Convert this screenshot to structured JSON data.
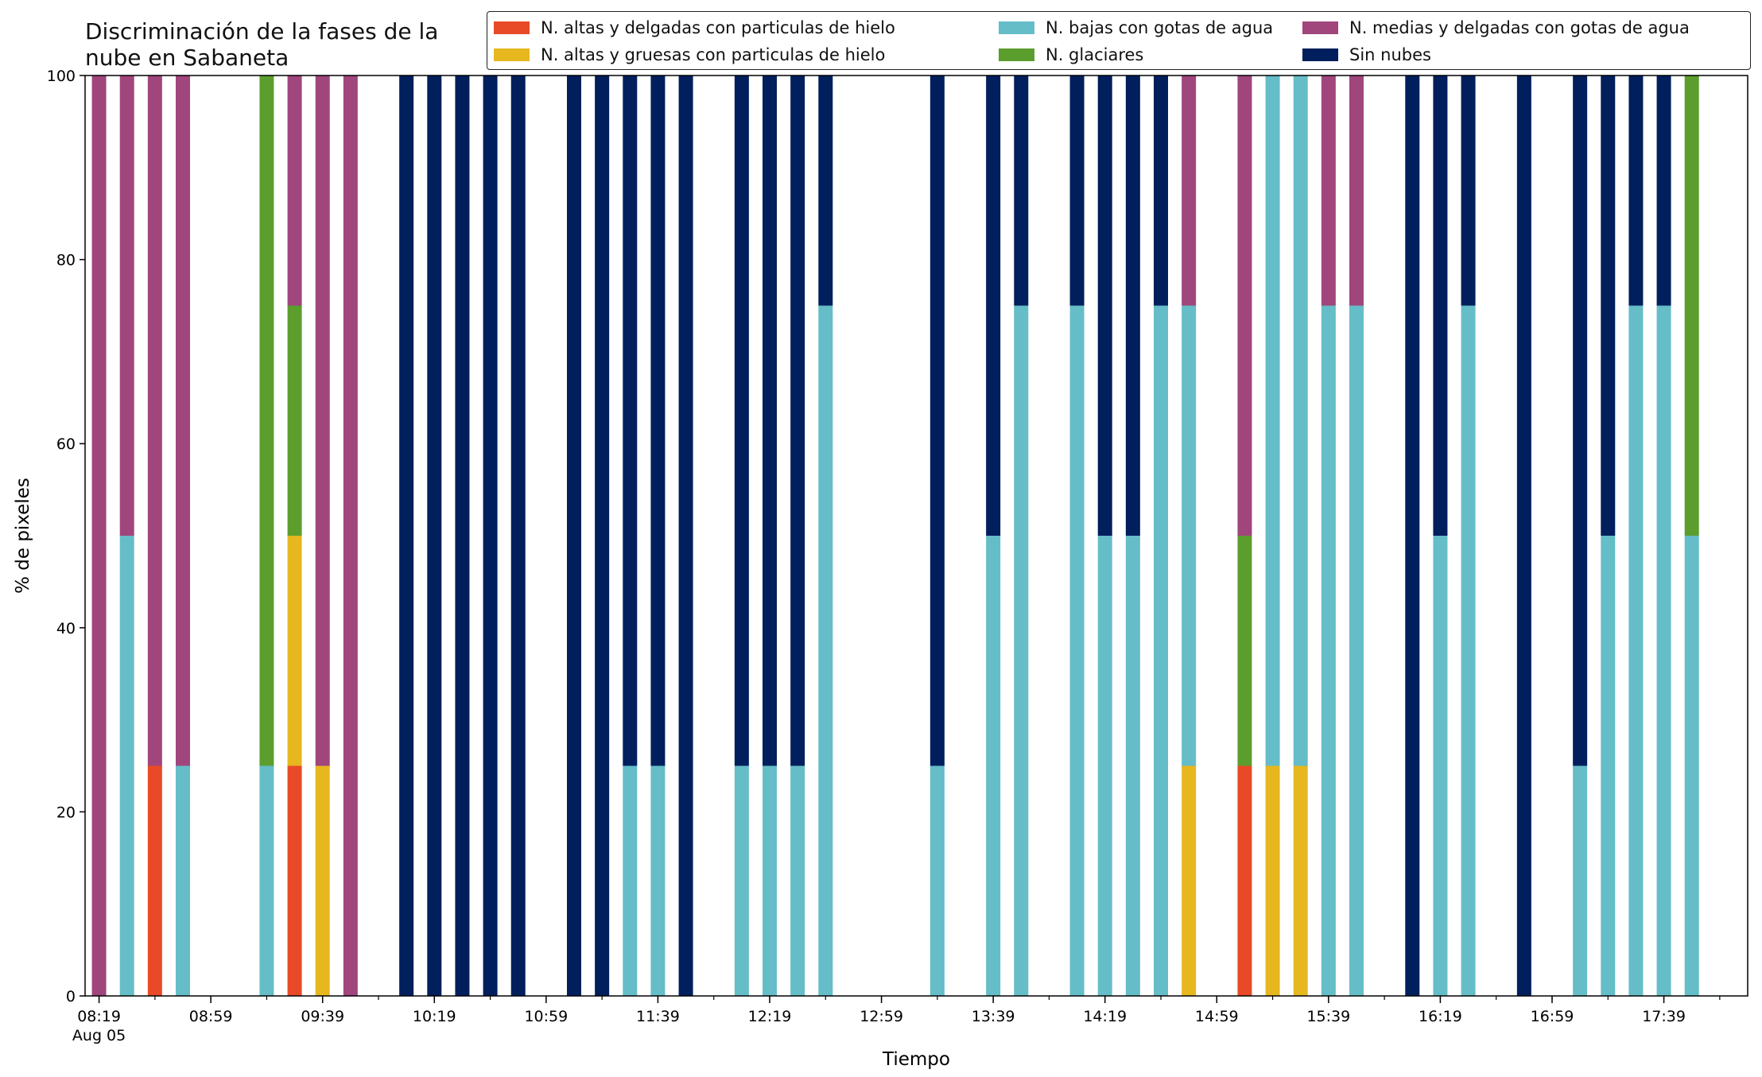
{
  "chart_data": {
    "type": "bar",
    "stacked": true,
    "title": "Discriminación de la fases de la nube en Sabaneta",
    "title_lines": [
      "Discriminación de la fases de la",
      "nube en Sabaneta"
    ],
    "xlabel": "Tiempo",
    "ylabel": "% de pixeles",
    "ylim": [
      0,
      100
    ],
    "yticks": [
      0,
      20,
      40,
      60,
      80,
      100
    ],
    "x_tick_labels": [
      "08:19",
      "08:59",
      "09:39",
      "10:19",
      "10:59",
      "11:39",
      "12:19",
      "12:59",
      "13:39",
      "14:19",
      "14:59",
      "15:39",
      "16:19",
      "16:59",
      "17:39"
    ],
    "x_date_label": "Aug 05",
    "x_range": [
      "08:14",
      "18:09"
    ],
    "bar_interval_minutes": 10,
    "grid": false,
    "legend_position": "top",
    "legend_columns": 3,
    "categories": [
      "08:19",
      "08:29",
      "08:39",
      "08:49",
      "08:59",
      "09:09",
      "09:19",
      "09:29",
      "09:39",
      "09:49",
      "09:59",
      "10:09",
      "10:19",
      "10:29",
      "10:39",
      "10:49",
      "10:59",
      "11:09",
      "11:19",
      "11:29",
      "11:39",
      "11:49",
      "11:59",
      "12:09",
      "12:19",
      "12:29",
      "12:39",
      "12:49",
      "12:59",
      "13:09",
      "13:19",
      "13:29",
      "13:39",
      "13:49",
      "13:59",
      "14:09",
      "14:19",
      "14:29",
      "14:39",
      "14:49",
      "14:59",
      "15:09",
      "15:19",
      "15:29",
      "15:39",
      "15:49",
      "15:59",
      "16:09",
      "16:19",
      "16:29",
      "16:39",
      "16:49",
      "16:59",
      "17:09",
      "17:19",
      "17:29",
      "17:39",
      "17:49",
      "17:59"
    ],
    "series": [
      {
        "name": "N. altas y delgadas con particulas de hielo",
        "color": "#e84a27",
        "values": [
          0,
          0,
          25,
          0,
          0,
          0,
          0,
          25,
          0,
          0,
          0,
          0,
          0,
          0,
          0,
          0,
          0,
          0,
          0,
          0,
          0,
          0,
          0,
          0,
          0,
          0,
          0,
          0,
          0,
          0,
          0,
          0,
          0,
          0,
          0,
          0,
          0,
          0,
          0,
          0,
          0,
          25,
          0,
          0,
          0,
          0,
          0,
          0,
          0,
          0,
          0,
          0,
          0,
          0,
          0,
          0,
          0,
          0,
          0
        ]
      },
      {
        "name": "N. altas y gruesas con particulas de hielo",
        "color": "#e6b71e",
        "values": [
          0,
          0,
          0,
          0,
          0,
          0,
          0,
          25,
          25,
          0,
          0,
          0,
          0,
          0,
          0,
          0,
          0,
          0,
          0,
          0,
          0,
          0,
          0,
          0,
          0,
          0,
          0,
          0,
          0,
          0,
          0,
          0,
          0,
          0,
          0,
          0,
          0,
          0,
          0,
          25,
          0,
          0,
          25,
          25,
          0,
          0,
          0,
          0,
          0,
          0,
          0,
          0,
          0,
          0,
          0,
          0,
          0,
          0,
          0
        ]
      },
      {
        "name": "N. bajas con gotas de agua",
        "color": "#65bdc8",
        "values": [
          0,
          50,
          0,
          25,
          0,
          0,
          25,
          0,
          0,
          0,
          0,
          0,
          0,
          0,
          0,
          0,
          0,
          0,
          0,
          25,
          25,
          0,
          0,
          25,
          25,
          25,
          75,
          0,
          0,
          0,
          25,
          0,
          50,
          75,
          0,
          75,
          50,
          50,
          75,
          50,
          0,
          0,
          75,
          75,
          75,
          75,
          0,
          0,
          50,
          75,
          0,
          0,
          0,
          25,
          50,
          75,
          75,
          50,
          0
        ]
      },
      {
        "name": "N. glaciares",
        "color": "#5c9e2e",
        "values": [
          0,
          0,
          0,
          0,
          0,
          0,
          75,
          25,
          0,
          0,
          0,
          0,
          0,
          0,
          0,
          0,
          0,
          0,
          0,
          0,
          0,
          0,
          0,
          0,
          0,
          0,
          0,
          0,
          0,
          0,
          0,
          0,
          0,
          0,
          0,
          0,
          0,
          0,
          0,
          0,
          0,
          25,
          0,
          0,
          0,
          0,
          0,
          0,
          0,
          0,
          0,
          0,
          0,
          0,
          0,
          0,
          0,
          50,
          0
        ]
      },
      {
        "name": "N. medias y delgadas con gotas de agua",
        "color": "#a0467c",
        "values": [
          100,
          50,
          75,
          75,
          0,
          0,
          0,
          25,
          75,
          100,
          0,
          0,
          0,
          0,
          0,
          0,
          0,
          0,
          0,
          0,
          0,
          0,
          0,
          0,
          0,
          0,
          0,
          0,
          0,
          0,
          0,
          0,
          0,
          0,
          0,
          0,
          0,
          0,
          0,
          25,
          0,
          50,
          0,
          0,
          25,
          25,
          0,
          0,
          0,
          0,
          0,
          0,
          0,
          0,
          0,
          0,
          0,
          0,
          0
        ]
      },
      {
        "name": "Sin nubes",
        "color": "#001f5c",
        "values": [
          0,
          0,
          0,
          0,
          0,
          0,
          0,
          0,
          0,
          0,
          0,
          100,
          100,
          100,
          100,
          100,
          0,
          100,
          100,
          75,
          75,
          100,
          0,
          75,
          75,
          75,
          25,
          0,
          0,
          0,
          75,
          0,
          50,
          25,
          0,
          25,
          50,
          50,
          25,
          0,
          0,
          0,
          0,
          0,
          0,
          0,
          0,
          100,
          50,
          25,
          0,
          100,
          0,
          75,
          50,
          25,
          25,
          0,
          0
        ]
      }
    ]
  }
}
